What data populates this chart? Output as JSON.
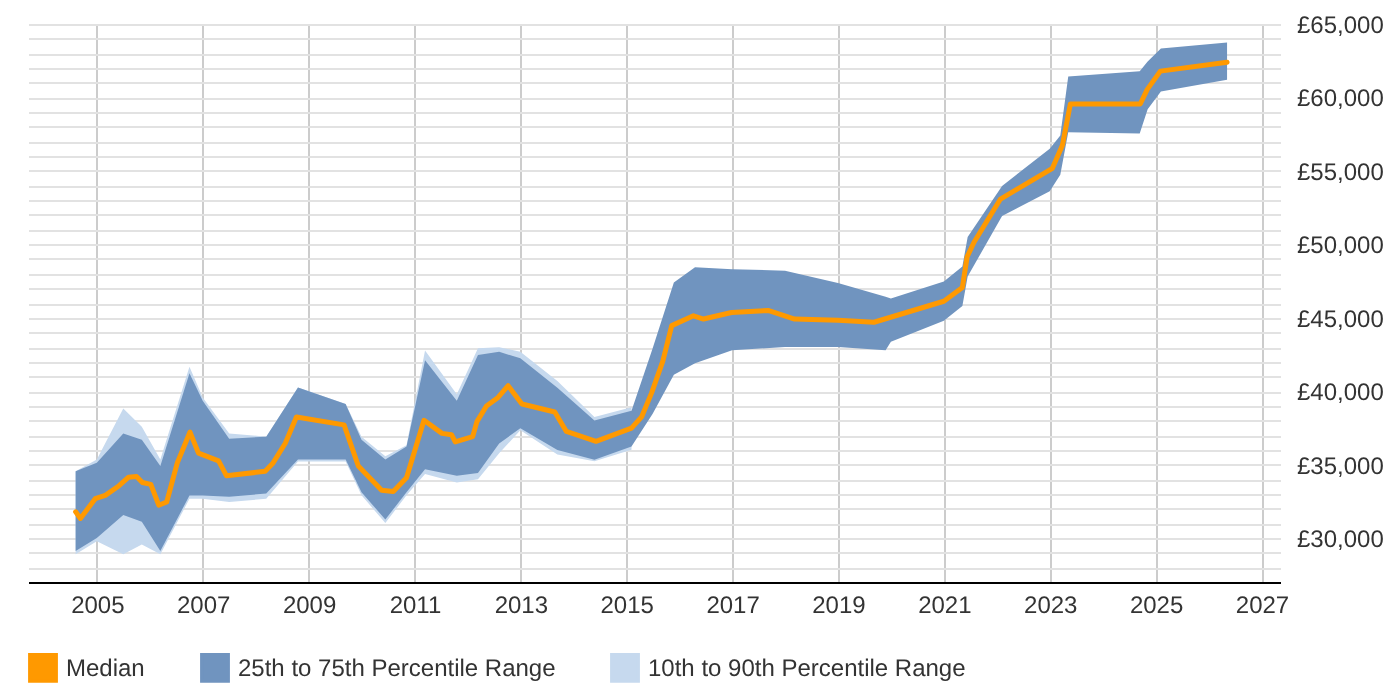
{
  "chart_data": {
    "type": "line",
    "xlim": [
      2003.7,
      2027.35
    ],
    "xticks": [
      2005,
      2007,
      2009,
      2011,
      2013,
      2015,
      2017,
      2019,
      2021,
      2023,
      2025,
      2027
    ],
    "ylim": [
      27000,
      65000
    ],
    "yticks": [
      {
        "value": 28000,
        "label": null
      },
      {
        "value": 29000,
        "label": null
      },
      {
        "value": 30000,
        "label": "£30,000"
      },
      {
        "value": 31000,
        "label": null
      },
      {
        "value": 32000,
        "label": null
      },
      {
        "value": 33000,
        "label": null
      },
      {
        "value": 34000,
        "label": null
      },
      {
        "value": 35000,
        "label": "£35,000"
      },
      {
        "value": 36000,
        "label": null
      },
      {
        "value": 37000,
        "label": null
      },
      {
        "value": 38000,
        "label": null
      },
      {
        "value": 39000,
        "label": null
      },
      {
        "value": 40000,
        "label": "£40,000"
      },
      {
        "value": 41000,
        "label": null
      },
      {
        "value": 42000,
        "label": null
      },
      {
        "value": 43000,
        "label": null
      },
      {
        "value": 44000,
        "label": null
      },
      {
        "value": 45000,
        "label": "£45,000"
      },
      {
        "value": 46000,
        "label": null
      },
      {
        "value": 47000,
        "label": null
      },
      {
        "value": 48000,
        "label": null
      },
      {
        "value": 49000,
        "label": null
      },
      {
        "value": 50000,
        "label": "£50,000"
      },
      {
        "value": 51000,
        "label": null
      },
      {
        "value": 52000,
        "label": null
      },
      {
        "value": 53000,
        "label": null
      },
      {
        "value": 54000,
        "label": null
      },
      {
        "value": 55000,
        "label": "£55,000"
      },
      {
        "value": 56000,
        "label": null
      },
      {
        "value": 57000,
        "label": null
      },
      {
        "value": 58000,
        "label": null
      },
      {
        "value": 59000,
        "label": null
      },
      {
        "value": 60000,
        "label": "£60,000"
      },
      {
        "value": 61000,
        "label": null
      },
      {
        "value": 62000,
        "label": null
      },
      {
        "value": 63000,
        "label": null
      },
      {
        "value": 64000,
        "label": null
      },
      {
        "value": 65000,
        "label": "£65,000"
      }
    ],
    "grid": true,
    "legend": "bottom",
    "series": [
      {
        "name": "Median",
        "color": "#ff9900",
        "x": [
          2004.6,
          2004.69,
          2004.97,
          2005.16,
          2005.42,
          2005.6,
          2005.75,
          2005.86,
          2006.02,
          2006.17,
          2006.32,
          2006.52,
          2006.76,
          2006.92,
          2007.3,
          2007.45,
          2008.18,
          2008.33,
          2008.56,
          2008.77,
          2009.67,
          2009.94,
          2010.38,
          2010.6,
          2010.85,
          2011.18,
          2011.52,
          2011.7,
          2011.77,
          2012.1,
          2012.18,
          2012.36,
          2012.58,
          2012.77,
          2013.03,
          2013.65,
          2013.87,
          2014.43,
          2015.1,
          2015.29,
          2015.48,
          2015.69,
          2015.86,
          2016.27,
          2016.46,
          2016.99,
          2017.68,
          2018.18,
          2019.0,
          2019.68,
          2021.0,
          2021.35,
          2021.44,
          2021.57,
          2022.07,
          2023.05,
          2023.24,
          2023.39,
          2024.71,
          2024.84,
          2025.09,
          2026.35
        ],
        "values": [
          31780,
          31330,
          32670,
          32900,
          33560,
          34140,
          34180,
          33780,
          33650,
          32230,
          32450,
          35110,
          37210,
          35780,
          35250,
          34230,
          34540,
          35110,
          36450,
          38240,
          37700,
          34900,
          33250,
          33160,
          34100,
          38010,
          37120,
          37030,
          36540,
          36900,
          37920,
          38990,
          39570,
          40370,
          39120,
          38580,
          37250,
          36580,
          37480,
          38240,
          39880,
          42020,
          44460,
          45130,
          44910,
          45350,
          45490,
          44910,
          44820,
          44690,
          46120,
          47060,
          49150,
          50140,
          53080,
          55170,
          56740,
          59550,
          59550,
          60530,
          61790,
          62400
        ]
      },
      {
        "name": "25th to 75th Percentile Range",
        "color": "#7094bf",
        "values": [
          null,
          null,
          null,
          null,
          null,
          null,
          null,
          null,
          null,
          null,
          null,
          null,
          null,
          null,
          null,
          null,
          null,
          null,
          null,
          null,
          null,
          null,
          null,
          null,
          null,
          null,
          null,
          null,
          null,
          null,
          null,
          null,
          null,
          null,
          null,
          null,
          null,
          null,
          null,
          null,
          null
        ],
        "x": [
          2004.6,
          2005.0,
          2005.5,
          2005.85,
          2006.2,
          2006.75,
          2007.0,
          2007.5,
          2008.2,
          2008.8,
          2009.7,
          2010.0,
          2010.45,
          2010.85,
          2011.2,
          2011.8,
          2012.2,
          2012.6,
          2013.0,
          2013.7,
          2014.4,
          2015.1,
          2015.5,
          2015.9,
          2016.3,
          2017.0,
          2018.0,
          2019.0,
          2019.9,
          2020.0,
          2021.0,
          2021.35,
          2021.45,
          2022.1,
          2023.0,
          2023.2,
          2023.35,
          2024.7,
          2024.85,
          2025.1,
          2026.35
        ],
        "upper": [
          34540,
          35120,
          37120,
          36680,
          34900,
          41210,
          39350,
          36760,
          36900,
          40240,
          39120,
          36680,
          35340,
          36230,
          42100,
          39350,
          42460,
          42680,
          42230,
          40230,
          38000,
          38670,
          42910,
          47400,
          48440,
          48300,
          48200,
          47370,
          46430,
          46300,
          47460,
          48480,
          50490,
          53970,
          56510,
          57400,
          61420,
          61780,
          62450,
          63340,
          63740
        ],
        "lower": [
          29110,
          30000,
          31560,
          31110,
          29110,
          32890,
          32890,
          32800,
          33030,
          35340,
          35340,
          33120,
          31250,
          33120,
          34670,
          34230,
          34430,
          36440,
          37470,
          35990,
          35320,
          36220,
          38450,
          41120,
          41900,
          42780,
          43010,
          43010,
          42780,
          43360,
          44790,
          45800,
          47810,
          51920,
          53610,
          54730,
          57630,
          57540,
          59190,
          60400,
          61200
        ]
      },
      {
        "name": "10th to 90th Percentile Range",
        "color": "#c6d9ee",
        "values": [
          null,
          null,
          null,
          null,
          null,
          null,
          null,
          null,
          null,
          null,
          null,
          null,
          null,
          null,
          null,
          null,
          null,
          null,
          null,
          null,
          null,
          null
        ],
        "x": [
          2004.6,
          2005.0,
          2005.5,
          2005.85,
          2006.2,
          2006.75,
          2007.0,
          2007.5,
          2008.2,
          2008.8,
          2009.7,
          2010.0,
          2010.45,
          2010.85,
          2011.2,
          2011.8,
          2012.2,
          2012.6,
          2013.0,
          2013.7,
          2014.4,
          2015.1
        ],
        "upper": [
          34540,
          35340,
          38810,
          37570,
          35340,
          41660,
          39570,
          37120,
          36900,
          40240,
          39120,
          36900,
          35560,
          36320,
          42770,
          39790,
          42910,
          42990,
          42680,
          40680,
          38230,
          38900
        ],
        "lower": [
          28890,
          29780,
          28890,
          29560,
          28890,
          32670,
          32670,
          32450,
          32670,
          35210,
          35210,
          32900,
          31020,
          32900,
          34360,
          33780,
          34000,
          35770,
          37330,
          35680,
          35230,
          36000
        ]
      }
    ]
  }
}
